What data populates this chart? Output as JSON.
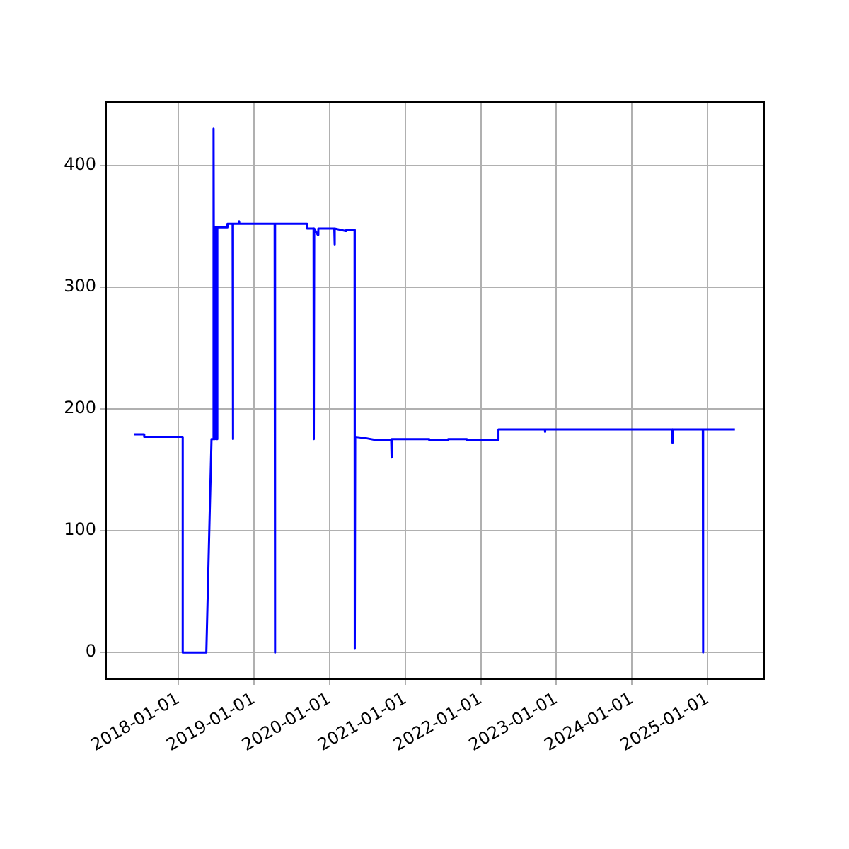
{
  "chart_data": {
    "type": "line",
    "color": "#0000ff",
    "grid": true,
    "legend": false,
    "marker": "none",
    "line_style": "solid",
    "xlim": [
      "2017-01-17",
      "2025-09-30"
    ],
    "xticks": [
      "2018-01-01",
      "2019-01-01",
      "2020-01-01",
      "2021-01-01",
      "2022-01-01",
      "2023-01-01",
      "2024-01-01",
      "2025-01-01"
    ],
    "ylim": [
      -22,
      452
    ],
    "yticks": [
      0,
      100,
      200,
      300,
      400
    ],
    "x": [
      "2017-05-31",
      "2017-07-20",
      "2017-07-20",
      "2018-01-22",
      "2018-01-22",
      "2018-05-16",
      "2018-06-10",
      "2018-06-20",
      "2018-06-20",
      "2018-06-23",
      "2018-06-25",
      "2018-06-27",
      "2018-06-29",
      "2018-07-01",
      "2018-07-04",
      "2018-07-06",
      "2018-07-08",
      "2018-08-26",
      "2018-08-26",
      "2018-09-20",
      "2018-09-21",
      "2018-09-23",
      "2018-10-20",
      "2018-10-21",
      "2018-10-23",
      "2019-04-11",
      "2019-04-12",
      "2019-04-14",
      "2019-09-15",
      "2019-09-15",
      "2019-10-16",
      "2019-10-17",
      "2019-10-19",
      "2019-11-05",
      "2019-11-08",
      "2020-01-24",
      "2020-01-25",
      "2020-01-27",
      "2020-03-20",
      "2020-03-22",
      "2020-05-01",
      "2020-05-02",
      "2020-05-04",
      "2020-06-20",
      "2020-08-20",
      "2020-10-25",
      "2020-10-26",
      "2020-10-28",
      "2021-04-26",
      "2021-04-27",
      "2021-07-26",
      "2021-07-27",
      "2021-10-25",
      "2021-10-26",
      "2022-03-26",
      "2022-03-27",
      "2022-11-06",
      "2022-11-07",
      "2022-11-08",
      "2024-07-13",
      "2024-07-14",
      "2024-07-15",
      "2024-12-08",
      "2024-12-09",
      "2024-12-10",
      "2025-05-12"
    ],
    "values": [
      179,
      179,
      177,
      177,
      0,
      0,
      175,
      175,
      430,
      175,
      349,
      175,
      349,
      175,
      349,
      175,
      349,
      349,
      352,
      352,
      175,
      352,
      352,
      354,
      352,
      352,
      0,
      352,
      352,
      348,
      348,
      175,
      348,
      343,
      348,
      348,
      335,
      348,
      346,
      347,
      347,
      3,
      177,
      176,
      174,
      174,
      160,
      175,
      175,
      174,
      174,
      175,
      175,
      174,
      174,
      183,
      183,
      181,
      183,
      183,
      172,
      183,
      183,
      0,
      183,
      183
    ]
  }
}
